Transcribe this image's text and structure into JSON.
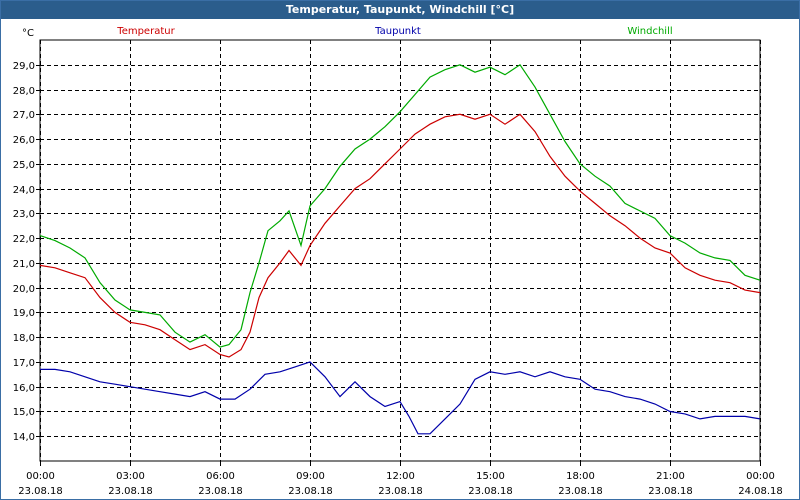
{
  "window": {
    "title": "Temperatur, Taupunkt, Windchill [°C]"
  },
  "chart_data": {
    "type": "line",
    "title": "Temperatur, Taupunkt, Windchill [°C]",
    "ylabel": "°C",
    "ylim": [
      13.0,
      30.0
    ],
    "xlim": [
      0,
      24
    ],
    "grid": true,
    "y_ticks": [
      "14,0",
      "15,0",
      "16,0",
      "17,0",
      "18,0",
      "19,0",
      "20,0",
      "21,0",
      "22,0",
      "23,0",
      "24,0",
      "25,0",
      "26,0",
      "27,0",
      "28,0",
      "29,0"
    ],
    "x_ticks": [
      {
        "time": "00:00",
        "date": "23.08.18"
      },
      {
        "time": "03:00",
        "date": "23.08.18"
      },
      {
        "time": "06:00",
        "date": "23.08.18"
      },
      {
        "time": "09:00",
        "date": "23.08.18"
      },
      {
        "time": "12:00",
        "date": "23.08.18"
      },
      {
        "time": "15:00",
        "date": "23.08.18"
      },
      {
        "time": "18:00",
        "date": "23.08.18"
      },
      {
        "time": "21:00",
        "date": "23.08.18"
      },
      {
        "time": "00:00",
        "date": "24.08.18"
      }
    ],
    "series": [
      {
        "name": "Temperatur",
        "color": "#cc0000",
        "legend_position": "left",
        "points": [
          [
            0,
            20.9
          ],
          [
            0.5,
            20.8
          ],
          [
            1,
            20.6
          ],
          [
            1.5,
            20.4
          ],
          [
            2,
            19.6
          ],
          [
            2.5,
            19.0
          ],
          [
            3,
            18.6
          ],
          [
            3.5,
            18.5
          ],
          [
            4,
            18.3
          ],
          [
            4.5,
            17.9
          ],
          [
            5,
            17.5
          ],
          [
            5.5,
            17.7
          ],
          [
            6,
            17.3
          ],
          [
            6.3,
            17.2
          ],
          [
            6.7,
            17.5
          ],
          [
            7,
            18.2
          ],
          [
            7.3,
            19.6
          ],
          [
            7.6,
            20.4
          ],
          [
            8,
            21.0
          ],
          [
            8.3,
            21.5
          ],
          [
            8.7,
            20.9
          ],
          [
            9,
            21.7
          ],
          [
            9.5,
            22.6
          ],
          [
            10,
            23.3
          ],
          [
            10.5,
            24.0
          ],
          [
            11,
            24.4
          ],
          [
            11.5,
            25.0
          ],
          [
            12,
            25.6
          ],
          [
            12.5,
            26.2
          ],
          [
            13,
            26.6
          ],
          [
            13.5,
            26.9
          ],
          [
            14,
            27.0
          ],
          [
            14.5,
            26.8
          ],
          [
            15,
            27.0
          ],
          [
            15.5,
            26.6
          ],
          [
            16,
            27.0
          ],
          [
            16.5,
            26.3
          ],
          [
            17,
            25.3
          ],
          [
            17.5,
            24.5
          ],
          [
            18,
            23.9
          ],
          [
            18.5,
            23.4
          ],
          [
            19,
            22.9
          ],
          [
            19.5,
            22.5
          ],
          [
            20,
            22.0
          ],
          [
            20.5,
            21.6
          ],
          [
            21,
            21.4
          ],
          [
            21.5,
            20.8
          ],
          [
            22,
            20.5
          ],
          [
            22.5,
            20.3
          ],
          [
            23,
            20.2
          ],
          [
            23.5,
            19.9
          ],
          [
            24,
            19.8
          ]
        ]
      },
      {
        "name": "Taupunkt",
        "color": "#0000aa",
        "legend_position": "center",
        "points": [
          [
            0,
            16.7
          ],
          [
            0.5,
            16.7
          ],
          [
            1,
            16.6
          ],
          [
            1.5,
            16.4
          ],
          [
            2,
            16.2
          ],
          [
            2.5,
            16.1
          ],
          [
            3,
            16.0
          ],
          [
            3.5,
            15.9
          ],
          [
            4,
            15.8
          ],
          [
            4.5,
            15.7
          ],
          [
            5,
            15.6
          ],
          [
            5.5,
            15.8
          ],
          [
            6,
            15.5
          ],
          [
            6.5,
            15.5
          ],
          [
            7,
            15.9
          ],
          [
            7.5,
            16.5
          ],
          [
            8,
            16.6
          ],
          [
            8.5,
            16.8
          ],
          [
            9,
            17.0
          ],
          [
            9.5,
            16.4
          ],
          [
            10,
            15.6
          ],
          [
            10.5,
            16.2
          ],
          [
            11,
            15.6
          ],
          [
            11.5,
            15.2
          ],
          [
            12,
            15.4
          ],
          [
            12.3,
            14.8
          ],
          [
            12.6,
            14.1
          ],
          [
            13,
            14.1
          ],
          [
            13.5,
            14.7
          ],
          [
            14,
            15.3
          ],
          [
            14.5,
            16.3
          ],
          [
            15,
            16.6
          ],
          [
            15.5,
            16.5
          ],
          [
            16,
            16.6
          ],
          [
            16.5,
            16.4
          ],
          [
            17,
            16.6
          ],
          [
            17.5,
            16.4
          ],
          [
            18,
            16.3
          ],
          [
            18.5,
            15.9
          ],
          [
            19,
            15.8
          ],
          [
            19.5,
            15.6
          ],
          [
            20,
            15.5
          ],
          [
            20.5,
            15.3
          ],
          [
            21,
            15.0
          ],
          [
            21.5,
            14.9
          ],
          [
            22,
            14.7
          ],
          [
            22.5,
            14.8
          ],
          [
            23,
            14.8
          ],
          [
            23.5,
            14.8
          ],
          [
            24,
            14.7
          ]
        ]
      },
      {
        "name": "Windchill",
        "color": "#00aa00",
        "legend_position": "right",
        "points": [
          [
            0,
            22.1
          ],
          [
            0.5,
            21.9
          ],
          [
            1,
            21.6
          ],
          [
            1.5,
            21.2
          ],
          [
            2,
            20.2
          ],
          [
            2.5,
            19.5
          ],
          [
            3,
            19.1
          ],
          [
            3.5,
            19.0
          ],
          [
            4,
            18.9
          ],
          [
            4.5,
            18.2
          ],
          [
            5,
            17.8
          ],
          [
            5.5,
            18.1
          ],
          [
            6,
            17.6
          ],
          [
            6.3,
            17.7
          ],
          [
            6.7,
            18.3
          ],
          [
            7,
            19.8
          ],
          [
            7.3,
            21.0
          ],
          [
            7.6,
            22.3
          ],
          [
            8,
            22.7
          ],
          [
            8.3,
            23.1
          ],
          [
            8.7,
            21.7
          ],
          [
            9,
            23.3
          ],
          [
            9.5,
            24.0
          ],
          [
            10,
            24.9
          ],
          [
            10.5,
            25.6
          ],
          [
            11,
            26.0
          ],
          [
            11.5,
            26.5
          ],
          [
            12,
            27.1
          ],
          [
            12.5,
            27.8
          ],
          [
            13,
            28.5
          ],
          [
            13.5,
            28.8
          ],
          [
            14,
            29.0
          ],
          [
            14.5,
            28.7
          ],
          [
            15,
            28.9
          ],
          [
            15.5,
            28.6
          ],
          [
            16,
            29.0
          ],
          [
            16.5,
            28.1
          ],
          [
            17,
            27.0
          ],
          [
            17.5,
            25.9
          ],
          [
            18,
            25.0
          ],
          [
            18.5,
            24.5
          ],
          [
            19,
            24.1
          ],
          [
            19.5,
            23.4
          ],
          [
            20,
            23.1
          ],
          [
            20.5,
            22.8
          ],
          [
            21,
            22.1
          ],
          [
            21.5,
            21.8
          ],
          [
            22,
            21.4
          ],
          [
            22.5,
            21.2
          ],
          [
            23,
            21.1
          ],
          [
            23.5,
            20.5
          ],
          [
            24,
            20.3
          ]
        ]
      }
    ]
  }
}
